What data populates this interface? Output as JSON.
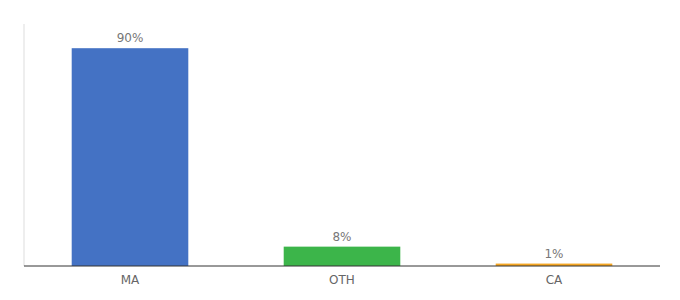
{
  "chart_data": {
    "type": "bar",
    "categories": [
      "MA",
      "OTH",
      "CA"
    ],
    "values": [
      90,
      8,
      1
    ],
    "value_labels": [
      "90%",
      "8%",
      "1%"
    ],
    "colors": [
      "#4472C4",
      "#3CB54A",
      "#F5A623"
    ],
    "ylim": [
      0,
      100
    ],
    "grid": false,
    "data_labels": true,
    "tick_labels": "x"
  }
}
